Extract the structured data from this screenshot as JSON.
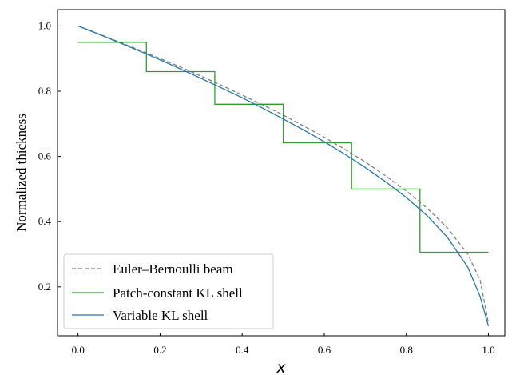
{
  "chart_data": {
    "type": "line",
    "xlabel": "x",
    "ylabel": "Normalized thickness",
    "xlim": [
      -0.05,
      1.04
    ],
    "ylim": [
      0.05,
      1.05
    ],
    "xticks": [
      0.0,
      0.2,
      0.4,
      0.6,
      0.8,
      1.0
    ],
    "xtick_labels": [
      "0.0",
      "0.2",
      "0.4",
      "0.6",
      "0.8",
      "1.0"
    ],
    "yticks": [
      0.2,
      0.4,
      0.6,
      0.8,
      1.0
    ],
    "ytick_labels": [
      "0.2",
      "0.4",
      "0.6",
      "0.8",
      "1.0"
    ],
    "grid": false,
    "legend_position": "lower-left",
    "series": [
      {
        "name": "Euler–Bernoulli beam",
        "style": "dashed",
        "color": "#808080",
        "x": [
          0.0,
          0.05,
          0.1,
          0.15,
          0.2,
          0.25,
          0.3,
          0.35,
          0.4,
          0.45,
          0.5,
          0.55,
          0.6,
          0.65,
          0.7,
          0.75,
          0.8,
          0.85,
          0.9,
          0.95,
          0.98,
          1.0
        ],
        "y": [
          1.0,
          0.976,
          0.951,
          0.926,
          0.9,
          0.874,
          0.846,
          0.818,
          0.788,
          0.758,
          0.727,
          0.693,
          0.659,
          0.622,
          0.583,
          0.54,
          0.494,
          0.442,
          0.381,
          0.3,
          0.22,
          0.09
        ]
      },
      {
        "name": "Patch-constant KL shell",
        "style": "solid",
        "color": "#2ca02c",
        "x": [
          0.0,
          0.1667,
          0.1667,
          0.3333,
          0.3333,
          0.5,
          0.5,
          0.6667,
          0.6667,
          0.8333,
          0.8333,
          1.0
        ],
        "y": [
          0.95,
          0.95,
          0.86,
          0.86,
          0.76,
          0.76,
          0.642,
          0.642,
          0.5,
          0.5,
          0.306,
          0.306
        ]
      },
      {
        "name": "Variable KL shell",
        "style": "solid",
        "color": "#1f77b4",
        "x": [
          0.0,
          0.05,
          0.1,
          0.15,
          0.2,
          0.25,
          0.3,
          0.35,
          0.4,
          0.45,
          0.5,
          0.55,
          0.6,
          0.65,
          0.7,
          0.75,
          0.8,
          0.85,
          0.9,
          0.95,
          0.98,
          1.0
        ],
        "y": [
          1.0,
          0.975,
          0.949,
          0.923,
          0.896,
          0.868,
          0.839,
          0.81,
          0.78,
          0.748,
          0.715,
          0.681,
          0.645,
          0.607,
          0.566,
          0.522,
          0.474,
          0.419,
          0.352,
          0.26,
          0.17,
          0.08
        ]
      }
    ]
  }
}
